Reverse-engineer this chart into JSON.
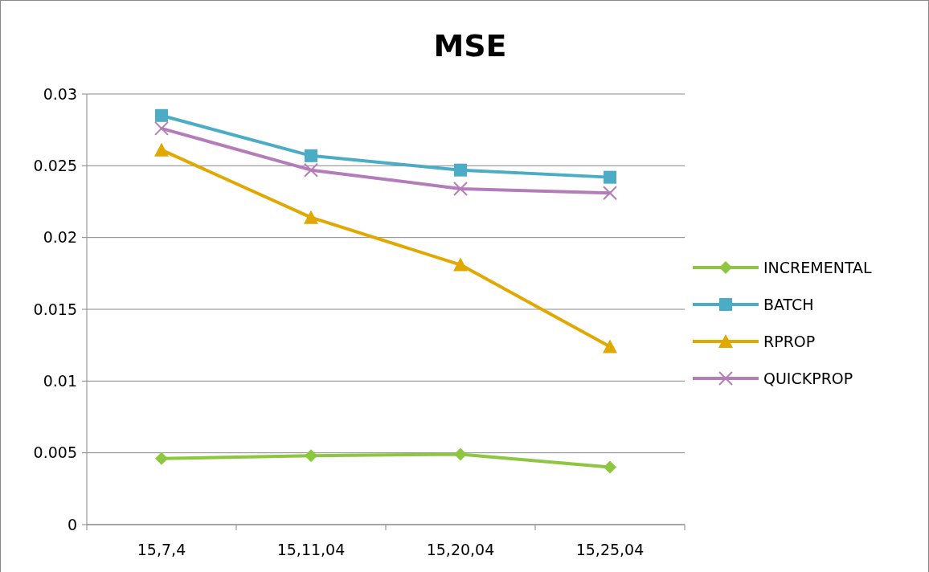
{
  "chart_data": {
    "type": "line",
    "title": "MSE",
    "categories": [
      "15,7,4",
      "15,11,04",
      "15,20,04",
      "15,25,04"
    ],
    "series": [
      {
        "name": "INCREMENTAL",
        "color": "#8dc63f",
        "marker": "diamond",
        "values": [
          0.0046,
          0.0048,
          0.0049,
          0.004
        ]
      },
      {
        "name": "BATCH",
        "color": "#4bacc6",
        "marker": "square",
        "values": [
          0.0285,
          0.0257,
          0.0247,
          0.0242
        ]
      },
      {
        "name": "RPROP",
        "color": "#e0a800",
        "marker": "triangle",
        "values": [
          0.0261,
          0.0214,
          0.0181,
          0.0124
        ]
      },
      {
        "name": "QUICKPROP",
        "color": "#b57cba",
        "marker": "cross",
        "values": [
          0.0276,
          0.0247,
          0.0234,
          0.0231
        ]
      }
    ],
    "ylim": [
      0,
      0.03
    ],
    "yticks": [
      0,
      0.005,
      0.01,
      0.015,
      0.02,
      0.025,
      0.03
    ],
    "grid": "y",
    "legend": "right",
    "line_style": "solid"
  }
}
